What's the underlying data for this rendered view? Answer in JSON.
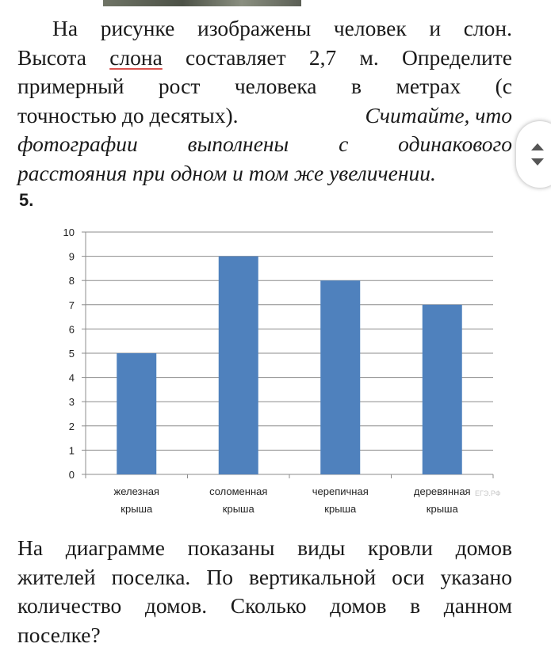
{
  "problem4": {
    "line1": "На рисунке изображены человек и слон.",
    "line2_a": "Высота ",
    "line2_b": "слона",
    "line2_c": " составляет 2,7 м. Определите",
    "line3": "примерный рост человека в метрах (с",
    "line4_a": "точностью до десятых). ",
    "line4_b": "Считайте, что",
    "line5": "фотографии выполнены с одинакового",
    "line6": "расстояния при одном и том же увеличении."
  },
  "problem5": {
    "number": "5.",
    "text_lines": [
      "На диаграмме показаны виды кровли домов",
      "жителей поселка. По вертикальной оси указано",
      "количество домов. Сколько домов в данном",
      "поселке?"
    ]
  },
  "chart_data": {
    "type": "bar",
    "categories": [
      [
        "железная",
        "крыша"
      ],
      [
        "соломенная",
        "крыша"
      ],
      [
        "черепичная",
        "крыша"
      ],
      [
        "деревянная",
        "крыша"
      ]
    ],
    "values": [
      5,
      9,
      8,
      7
    ],
    "ylim": [
      0,
      10
    ],
    "yticks": [
      "0",
      "1",
      "2",
      "3",
      "4",
      "5",
      "6",
      "7",
      "8",
      "9",
      "10"
    ],
    "grid": true,
    "legend": "none",
    "bar_color": "#4f81bd",
    "watermark": "ЕГЭ.РФ"
  },
  "colors": {
    "text": "#1a1a1a",
    "bar": "#4f81bd",
    "grid": "#8c8c8c"
  },
  "widgets": {
    "scroll_up_icon": "chevron-up-icon",
    "scroll_down_icon": "chevron-down-icon"
  }
}
